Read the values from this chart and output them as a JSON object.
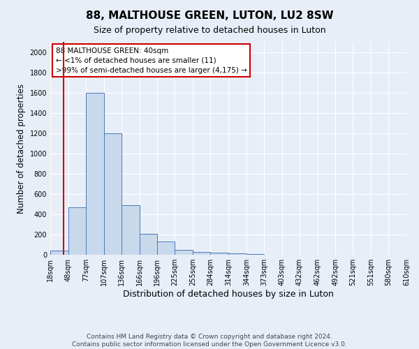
{
  "title": "88, MALTHOUSE GREEN, LUTON, LU2 8SW",
  "subtitle": "Size of property relative to detached houses in Luton",
  "xlabel": "Distribution of detached houses by size in Luton",
  "ylabel": "Number of detached properties",
  "bin_edges": [
    18,
    48,
    77,
    107,
    136,
    166,
    196,
    225,
    255,
    284,
    314,
    344,
    373,
    403,
    432,
    462,
    492,
    521,
    551,
    580,
    610
  ],
  "bar_heights": [
    40,
    470,
    1600,
    1200,
    490,
    210,
    130,
    45,
    30,
    20,
    15,
    5,
    3,
    2,
    1,
    1,
    0,
    0,
    0,
    0
  ],
  "bar_color": "#c9d9ec",
  "bar_edge_color": "#4a7ab5",
  "bg_color": "#e8eef8",
  "grid_color": "#ffffff",
  "red_line_x": 40,
  "red_line_color": "#cc0000",
  "annotation_text": "88 MALTHOUSE GREEN: 40sqm\n← <1% of detached houses are smaller (11)\n>99% of semi-detached houses are larger (4,175) →",
  "annotation_box_color": "#cc0000",
  "ylim": [
    0,
    2100
  ],
  "yticks": [
    0,
    200,
    400,
    600,
    800,
    1000,
    1200,
    1400,
    1600,
    1800,
    2000
  ],
  "footnote": "Contains HM Land Registry data © Crown copyright and database right 2024.\nContains public sector information licensed under the Open Government Licence v3.0.",
  "title_fontsize": 11,
  "subtitle_fontsize": 9,
  "tick_label_fontsize": 7,
  "ylabel_fontsize": 8.5,
  "xlabel_fontsize": 9
}
